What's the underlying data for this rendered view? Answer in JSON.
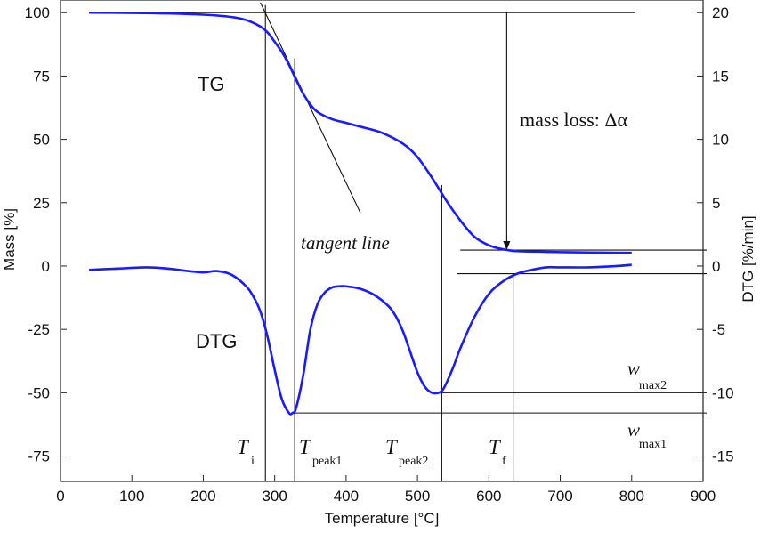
{
  "chart_data": {
    "type": "line",
    "xlabel": "Temperature [°C]",
    "ylabel_left": "Mass [%]",
    "ylabel_right": "DTG [%/min]",
    "xlim": [
      0,
      900
    ],
    "ylim_left": [
      -85,
      105
    ],
    "ylim_right": [
      -17,
      21
    ],
    "x_ticks": [
      0,
      100,
      200,
      300,
      400,
      500,
      600,
      700,
      800,
      900
    ],
    "y_ticks_left": [
      100,
      75,
      50,
      25,
      0,
      -25,
      -50,
      -75
    ],
    "y_ticks_right": [
      20,
      15,
      10,
      5,
      0,
      -5,
      -10,
      -15
    ],
    "grid": false,
    "series": [
      {
        "name": "TG",
        "axis": "left",
        "color": "#1a1aff",
        "x": [
          40,
          100,
          150,
          200,
          230,
          250,
          265,
          280,
          290,
          300,
          310,
          320,
          330,
          340,
          350,
          360,
          380,
          400,
          420,
          450,
          480,
          500,
          520,
          540,
          560,
          580,
          600,
          620,
          640,
          680,
          720,
          760,
          800
        ],
        "y": [
          100,
          99.9,
          99.7,
          99.2,
          98.6,
          97.8,
          96.6,
          94.5,
          92.2,
          88.5,
          84.5,
          79.5,
          73.5,
          68.0,
          63.8,
          60.8,
          58.0,
          56.5,
          55.0,
          52.6,
          48.2,
          43.0,
          35.0,
          26.0,
          18.0,
          11.5,
          8.2,
          6.6,
          5.9,
          5.6,
          5.4,
          5.3,
          5.2
        ]
      },
      {
        "name": "DTG",
        "axis": "right",
        "color": "#1a1aff",
        "x": [
          40,
          80,
          120,
          150,
          180,
          200,
          220,
          240,
          260,
          270,
          280,
          290,
          300,
          310,
          320,
          325,
          330,
          340,
          350,
          360,
          370,
          380,
          390,
          400,
          420,
          440,
          460,
          470,
          480,
          490,
          500,
          510,
          520,
          530,
          535,
          540,
          550,
          560,
          580,
          600,
          620,
          640,
          660,
          680,
          700,
          740,
          780,
          800
        ],
        "y": [
          -0.3,
          -0.2,
          -0.1,
          -0.2,
          -0.4,
          -0.5,
          -0.4,
          -0.7,
          -1.6,
          -2.4,
          -3.6,
          -5.6,
          -8.2,
          -10.5,
          -11.6,
          -11.6,
          -11.2,
          -8.6,
          -5.0,
          -3.0,
          -2.1,
          -1.7,
          -1.6,
          -1.6,
          -1.8,
          -2.3,
          -3.2,
          -4.0,
          -5.2,
          -6.8,
          -8.4,
          -9.5,
          -10.0,
          -10.0,
          -9.8,
          -9.3,
          -8.0,
          -6.5,
          -4.0,
          -2.2,
          -1.2,
          -0.6,
          -0.3,
          -0.1,
          -0.1,
          -0.1,
          0.0,
          0.1
        ]
      }
    ],
    "annotations": {
      "tg_label": "TG",
      "dtg_label": "DTG",
      "mass_loss": "mass loss: Δα",
      "tangent": "tangent line",
      "ti": {
        "main": "T",
        "sub": "i",
        "x": 287
      },
      "tpeak1": {
        "main": "T",
        "sub": "peak1",
        "x": 328
      },
      "tpeak2": {
        "main": "T",
        "sub": "peak2",
        "x": 534
      },
      "tf": {
        "main": "T",
        "sub": "f",
        "x": 634
      },
      "wmax2": {
        "main": "w",
        "sub": "max2"
      },
      "wmax1": {
        "main": "w",
        "sub": "max1"
      }
    }
  }
}
